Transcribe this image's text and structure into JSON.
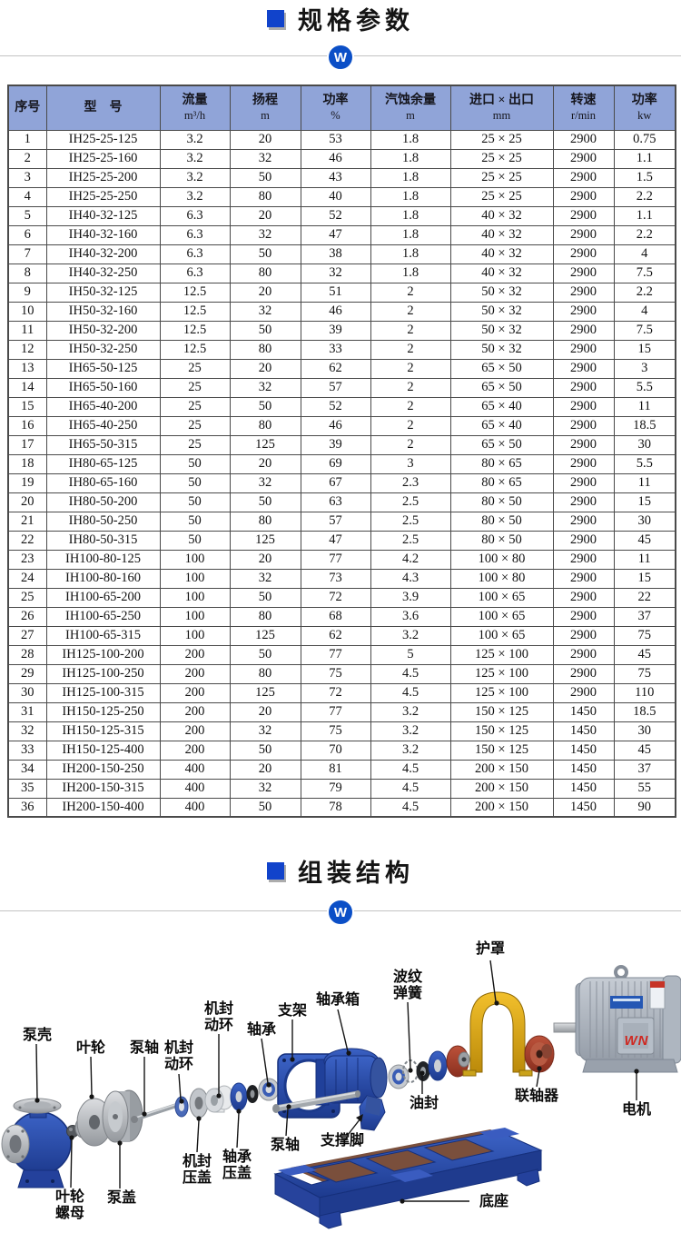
{
  "sections": {
    "specs_title": "规格参数",
    "assembly_title": "组装结构"
  },
  "divider": {
    "badge": "W"
  },
  "colors": {
    "accent_blue": "#1143cb",
    "badge_blue": "#0b4fc7",
    "table_header_bg": "#90a4d8",
    "casting_blue": "#2b4fae",
    "guard_yellow": "#d9a417",
    "coupling_red": "#a94330"
  },
  "table": {
    "headers": [
      {
        "line1": "序号",
        "line2": ""
      },
      {
        "line1": "型　号",
        "line2": ""
      },
      {
        "line1": "流量",
        "line2": "m³/h"
      },
      {
        "line1": "扬程",
        "line2": "m"
      },
      {
        "line1": "功率",
        "line2": "%"
      },
      {
        "line1": "汽蚀余量",
        "line2": "m"
      },
      {
        "line1": "进口 × 出口",
        "line2": "mm"
      },
      {
        "line1": "转速",
        "line2": "r/min"
      },
      {
        "line1": "功率",
        "line2": "kw"
      }
    ],
    "rows": [
      [
        "1",
        "IH25-25-125",
        "3.2",
        "20",
        "53",
        "1.8",
        "25 × 25",
        "2900",
        "0.75"
      ],
      [
        "2",
        "IH25-25-160",
        "3.2",
        "32",
        "46",
        "1.8",
        "25 × 25",
        "2900",
        "1.1"
      ],
      [
        "3",
        "IH25-25-200",
        "3.2",
        "50",
        "43",
        "1.8",
        "25 × 25",
        "2900",
        "1.5"
      ],
      [
        "4",
        "IH25-25-250",
        "3.2",
        "80",
        "40",
        "1.8",
        "25 × 25",
        "2900",
        "2.2"
      ],
      [
        "5",
        "IH40-32-125",
        "6.3",
        "20",
        "52",
        "1.8",
        "40 × 32",
        "2900",
        "1.1"
      ],
      [
        "6",
        "IH40-32-160",
        "6.3",
        "32",
        "47",
        "1.8",
        "40 × 32",
        "2900",
        "2.2"
      ],
      [
        "7",
        "IH40-32-200",
        "6.3",
        "50",
        "38",
        "1.8",
        "40 × 32",
        "2900",
        "4"
      ],
      [
        "8",
        "IH40-32-250",
        "6.3",
        "80",
        "32",
        "1.8",
        "40 × 32",
        "2900",
        "7.5"
      ],
      [
        "9",
        "IH50-32-125",
        "12.5",
        "20",
        "51",
        "2",
        "50 × 32",
        "2900",
        "2.2"
      ],
      [
        "10",
        "IH50-32-160",
        "12.5",
        "32",
        "46",
        "2",
        "50 × 32",
        "2900",
        "4"
      ],
      [
        "11",
        "IH50-32-200",
        "12.5",
        "50",
        "39",
        "2",
        "50 × 32",
        "2900",
        "7.5"
      ],
      [
        "12",
        "IH50-32-250",
        "12.5",
        "80",
        "33",
        "2",
        "50 × 32",
        "2900",
        "15"
      ],
      [
        "13",
        "IH65-50-125",
        "25",
        "20",
        "62",
        "2",
        "65 × 50",
        "2900",
        "3"
      ],
      [
        "14",
        "IH65-50-160",
        "25",
        "32",
        "57",
        "2",
        "65 × 50",
        "2900",
        "5.5"
      ],
      [
        "15",
        "IH65-40-200",
        "25",
        "50",
        "52",
        "2",
        "65 × 40",
        "2900",
        "11"
      ],
      [
        "16",
        "IH65-40-250",
        "25",
        "80",
        "46",
        "2",
        "65 × 40",
        "2900",
        "18.5"
      ],
      [
        "17",
        "IH65-50-315",
        "25",
        "125",
        "39",
        "2",
        "65 × 50",
        "2900",
        "30"
      ],
      [
        "18",
        "IH80-65-125",
        "50",
        "20",
        "69",
        "3",
        "80 × 65",
        "2900",
        "5.5"
      ],
      [
        "19",
        "IH80-65-160",
        "50",
        "32",
        "67",
        "2.3",
        "80 × 65",
        "2900",
        "11"
      ],
      [
        "20",
        "IH80-50-200",
        "50",
        "50",
        "63",
        "2.5",
        "80 × 50",
        "2900",
        "15"
      ],
      [
        "21",
        "IH80-50-250",
        "50",
        "80",
        "57",
        "2.5",
        "80 × 50",
        "2900",
        "30"
      ],
      [
        "22",
        "IH80-50-315",
        "50",
        "125",
        "47",
        "2.5",
        "80 × 50",
        "2900",
        "45"
      ],
      [
        "23",
        "IH100-80-125",
        "100",
        "20",
        "77",
        "4.2",
        "100 × 80",
        "2900",
        "11"
      ],
      [
        "24",
        "IH100-80-160",
        "100",
        "32",
        "73",
        "4.3",
        "100 × 80",
        "2900",
        "15"
      ],
      [
        "25",
        "IH100-65-200",
        "100",
        "50",
        "72",
        "3.9",
        "100 × 65",
        "2900",
        "22"
      ],
      [
        "26",
        "IH100-65-250",
        "100",
        "80",
        "68",
        "3.6",
        "100 × 65",
        "2900",
        "37"
      ],
      [
        "27",
        "IH100-65-315",
        "100",
        "125",
        "62",
        "3.2",
        "100 × 65",
        "2900",
        "75"
      ],
      [
        "28",
        "IH125-100-200",
        "200",
        "50",
        "77",
        "5",
        "125 × 100",
        "2900",
        "45"
      ],
      [
        "29",
        "IH125-100-250",
        "200",
        "80",
        "75",
        "4.5",
        "125 × 100",
        "2900",
        "75"
      ],
      [
        "30",
        "IH125-100-315",
        "200",
        "125",
        "72",
        "4.5",
        "125 × 100",
        "2900",
        "110"
      ],
      [
        "31",
        "IH150-125-250",
        "200",
        "20",
        "77",
        "3.2",
        "150 × 125",
        "1450",
        "18.5"
      ],
      [
        "32",
        "IH150-125-315",
        "200",
        "32",
        "75",
        "3.2",
        "150 × 125",
        "1450",
        "30"
      ],
      [
        "33",
        "IH150-125-400",
        "200",
        "50",
        "70",
        "3.2",
        "150 × 125",
        "1450",
        "45"
      ],
      [
        "34",
        "IH200-150-250",
        "400",
        "20",
        "81",
        "4.5",
        "200 × 150",
        "1450",
        "37"
      ],
      [
        "35",
        "IH200-150-315",
        "400",
        "32",
        "79",
        "4.5",
        "200 × 150",
        "1450",
        "55"
      ],
      [
        "36",
        "IH200-150-400",
        "400",
        "50",
        "78",
        "4.5",
        "200 × 150",
        "1450",
        "90"
      ]
    ]
  },
  "diagram": {
    "motor_text": "WN",
    "labels": [
      {
        "text": "泵壳"
      },
      {
        "text": "叶轮"
      },
      {
        "text": "泵轴"
      },
      {
        "text": "机封\n动环"
      },
      {
        "text": "机封\n动环"
      },
      {
        "text": "轴承"
      },
      {
        "text": "支架"
      },
      {
        "text": "轴承箱"
      },
      {
        "text": "波纹\n弹簧"
      },
      {
        "text": "护罩"
      },
      {
        "text": "油封"
      },
      {
        "text": "联轴器"
      },
      {
        "text": "电机"
      },
      {
        "text": "泵轴"
      },
      {
        "text": "支撑脚"
      },
      {
        "text": "机封\n压盖"
      },
      {
        "text": "轴承\n压盖"
      },
      {
        "text": "叶轮\n螺母"
      },
      {
        "text": "泵盖"
      },
      {
        "text": "底座"
      }
    ]
  }
}
